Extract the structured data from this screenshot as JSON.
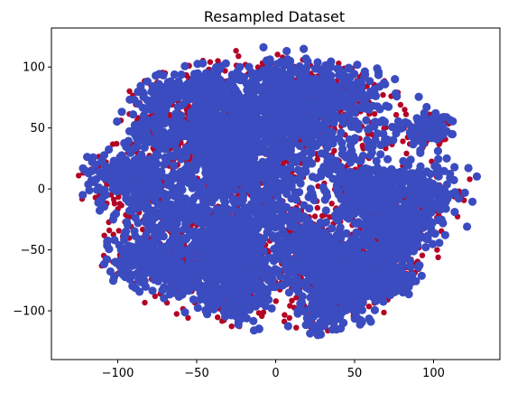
{
  "chart_data": {
    "type": "scatter",
    "title": "Resampled Dataset",
    "xlabel": "",
    "ylabel": "",
    "xlim": [
      -142,
      142
    ],
    "ylim": [
      -140,
      132
    ],
    "xticks": [
      -100,
      -50,
      0,
      50,
      100
    ],
    "yticks": [
      -100,
      -50,
      0,
      50,
      100
    ],
    "grid": false,
    "legend": "none",
    "series": [
      {
        "color": "#b40426",
        "description_points": "class 0",
        "points": []
      },
      {
        "color": "#3b4cc0",
        "description_points": "class 1",
        "points": []
      }
    ]
  }
}
